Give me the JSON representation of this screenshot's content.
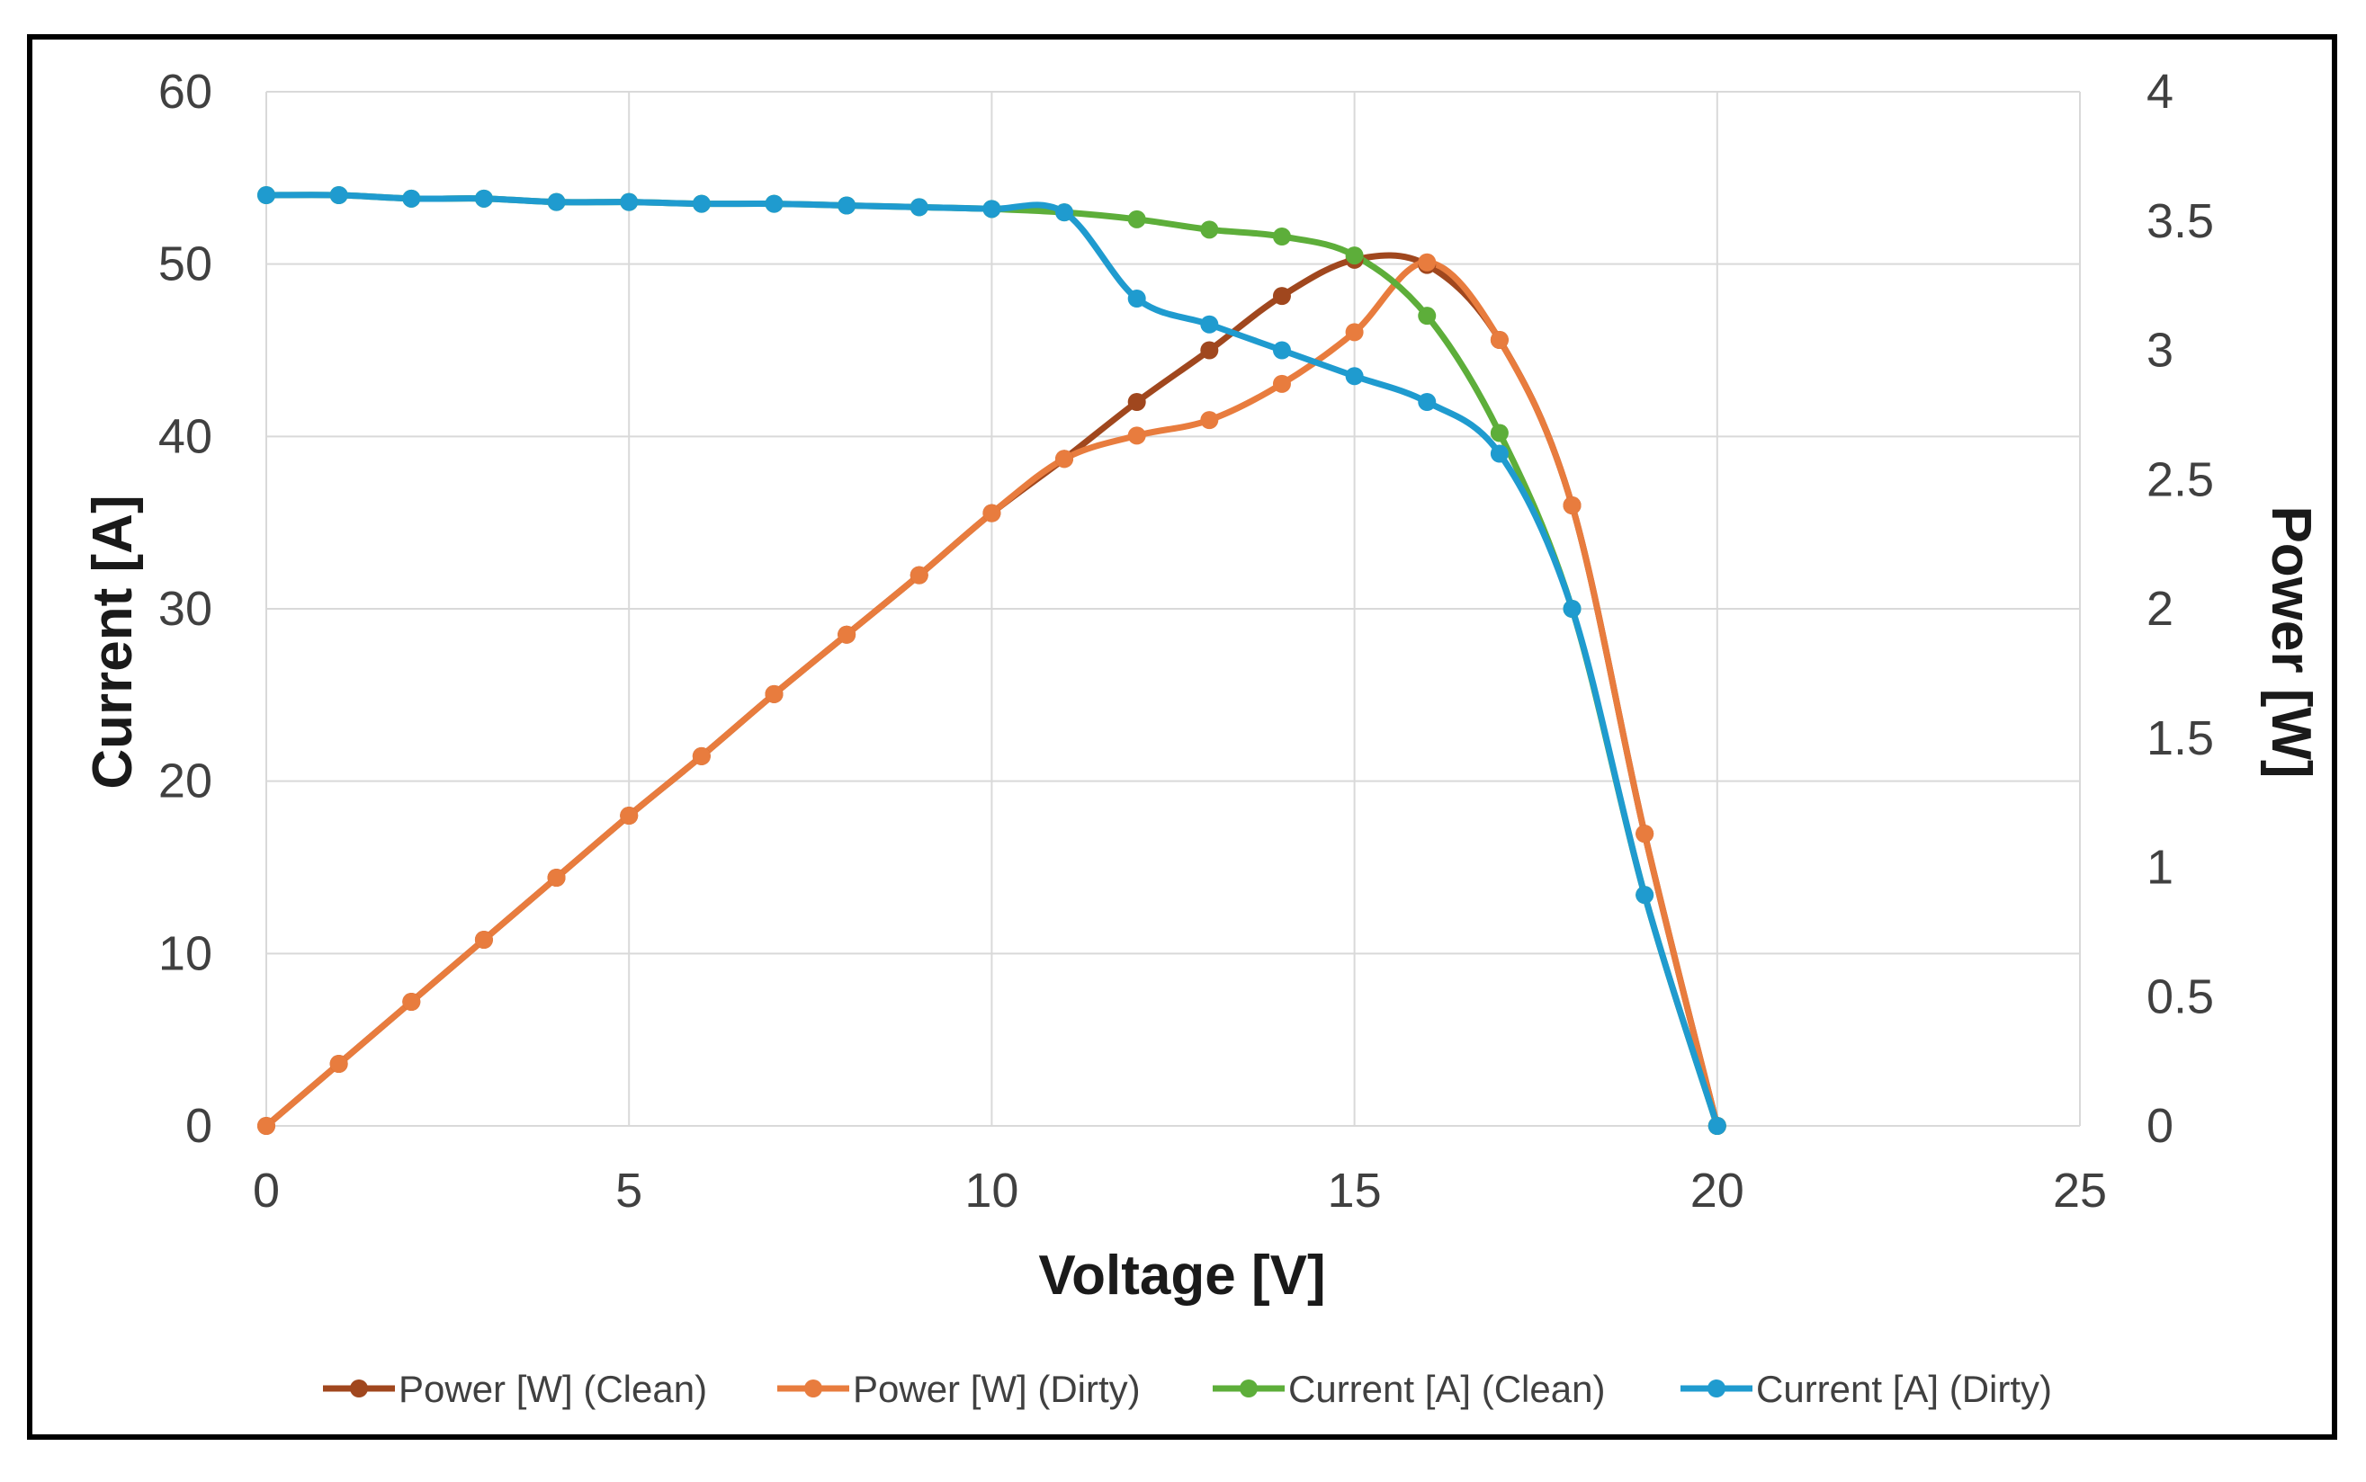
{
  "chart_data": {
    "type": "line",
    "title": "",
    "xlabel": "Voltage [V]",
    "ylabel": "Current [A]",
    "y2label": "Power [W]",
    "xlim": [
      0,
      25
    ],
    "ylim": [
      0,
      60
    ],
    "y2lim": [
      0,
      4
    ],
    "xticks": [
      "0",
      "5",
      "10",
      "15",
      "20",
      "25"
    ],
    "yticks": [
      "0",
      "10",
      "20",
      "30",
      "40",
      "50",
      "60"
    ],
    "y2ticks": [
      "0",
      "0.5",
      "1",
      "1.5",
      "2",
      "2.5",
      "3",
      "3.5",
      "4"
    ],
    "grid": true,
    "legend_position": "bottom",
    "colors": {
      "power_clean": "#A0471E",
      "power_dirty": "#E87C3E",
      "current_clean": "#5DAE3A",
      "current_dirty": "#1F9BCF",
      "grid": "#D9D9D9"
    },
    "series": [
      {
        "name": "Power [W] (Clean)",
        "axis": "right",
        "color": "#A0471E",
        "x": [
          0,
          1,
          2,
          3,
          4,
          5,
          6,
          7,
          8,
          9,
          10,
          11,
          12,
          13,
          14,
          15,
          16,
          17,
          18,
          19,
          20
        ],
        "values": [
          0,
          0.24,
          0.48,
          0.72,
          0.96,
          1.2,
          1.43,
          1.67,
          1.9,
          2.13,
          2.37,
          2.58,
          2.8,
          3.0,
          3.21,
          3.35,
          3.33,
          3.04,
          2.4,
          1.13,
          0
        ]
      },
      {
        "name": "Power [W] (Dirty)",
        "axis": "right",
        "color": "#E87C3E",
        "x": [
          0,
          1,
          2,
          3,
          4,
          5,
          6,
          7,
          8,
          9,
          10,
          11,
          12,
          13,
          14,
          15,
          16,
          17,
          18,
          19,
          20
        ],
        "values": [
          0,
          0.24,
          0.48,
          0.72,
          0.96,
          1.2,
          1.43,
          1.67,
          1.9,
          2.13,
          2.37,
          2.58,
          2.67,
          2.73,
          2.87,
          3.07,
          3.34,
          3.04,
          2.4,
          1.13,
          0
        ]
      },
      {
        "name": "Current [A] (Clean)",
        "axis": "left",
        "color": "#5DAE3A",
        "x": [
          0,
          1,
          2,
          3,
          4,
          5,
          6,
          7,
          8,
          9,
          10,
          11,
          12,
          13,
          14,
          15,
          16,
          17,
          18,
          19,
          20
        ],
        "values": [
          54,
          54,
          53.8,
          53.8,
          53.6,
          53.6,
          53.5,
          53.5,
          53.4,
          53.3,
          53.2,
          53.0,
          52.6,
          52.0,
          51.6,
          50.5,
          47.0,
          40.2,
          30.0,
          13.4,
          0
        ]
      },
      {
        "name": "Current [A] (Dirty)",
        "axis": "left",
        "color": "#1F9BCF",
        "x": [
          0,
          1,
          2,
          3,
          4,
          5,
          6,
          7,
          8,
          9,
          10,
          11,
          12,
          13,
          14,
          15,
          16,
          17,
          18,
          19,
          20
        ],
        "values": [
          54,
          54,
          53.8,
          53.8,
          53.6,
          53.6,
          53.5,
          53.5,
          53.4,
          53.3,
          53.2,
          53.0,
          48.0,
          46.5,
          45.0,
          43.5,
          42.0,
          39.0,
          30.0,
          13.4,
          0
        ]
      }
    ]
  }
}
